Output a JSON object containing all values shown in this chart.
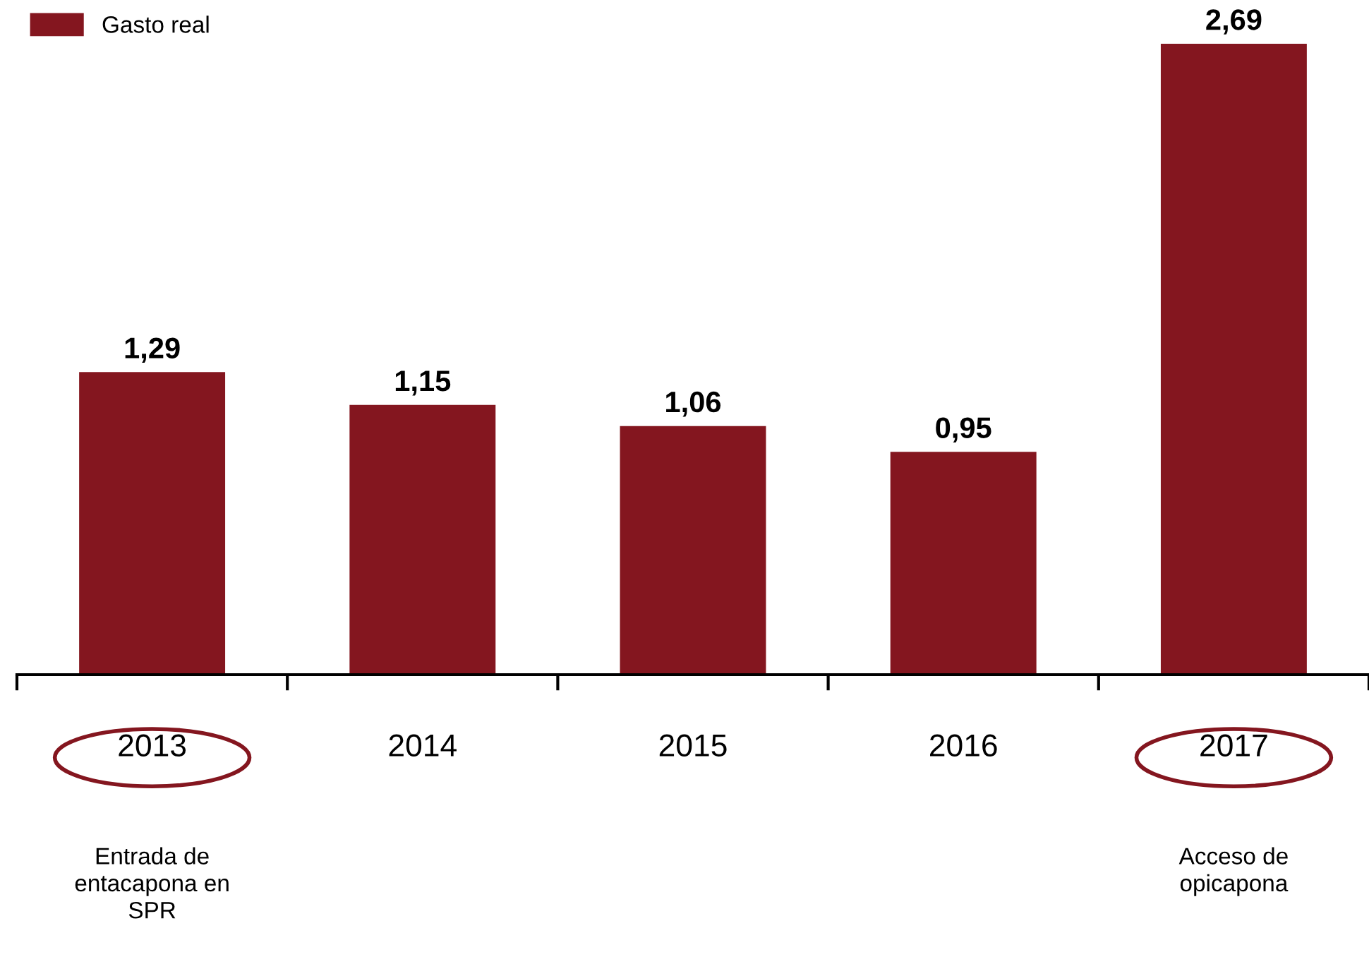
{
  "chart_data": {
    "type": "bar",
    "categories": [
      "2013",
      "2014",
      "2015",
      "2016",
      "2017"
    ],
    "series": [
      {
        "name": "Gasto real",
        "color": "#84161f",
        "values": [
          1.29,
          1.15,
          1.06,
          0.95,
          2.69
        ],
        "value_labels": [
          "1,29",
          "1,15",
          "1,06",
          "0,95",
          "2,69"
        ]
      }
    ],
    "tick_labels": "x",
    "legend": "top left",
    "grid": false,
    "annotations": [
      "Entrada de\nentacapona en\nSPR",
      "Acceso de\nopicapona"
    ]
  }
}
